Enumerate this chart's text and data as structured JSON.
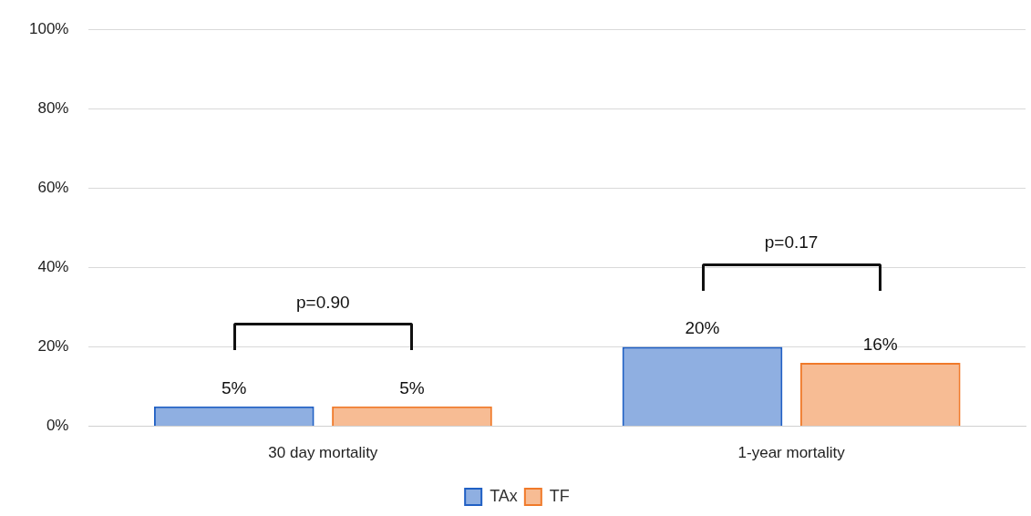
{
  "chart_data": {
    "type": "bar",
    "categories": [
      "30 day mortality",
      "1-year mortality"
    ],
    "series": [
      {
        "name": "TAx",
        "color": "#2060c4",
        "values": [
          5,
          20
        ],
        "value_labels": [
          "5%",
          "20%"
        ]
      },
      {
        "name": "TF",
        "color": "#f07a2a",
        "values": [
          5,
          16
        ],
        "value_labels": [
          "5%",
          "16%"
        ]
      }
    ],
    "ylim": [
      0,
      100
    ],
    "yticks": [
      {
        "value": 0,
        "label": "0%"
      },
      {
        "value": 20,
        "label": "20%"
      },
      {
        "value": 40,
        "label": "40%"
      },
      {
        "value": 60,
        "label": "60%"
      },
      {
        "value": 80,
        "label": "80%"
      },
      {
        "value": 100,
        "label": "100%"
      }
    ],
    "grid": "y",
    "legend": "bottom",
    "annotations": [
      "p=0.90",
      "p=0.17"
    ]
  }
}
